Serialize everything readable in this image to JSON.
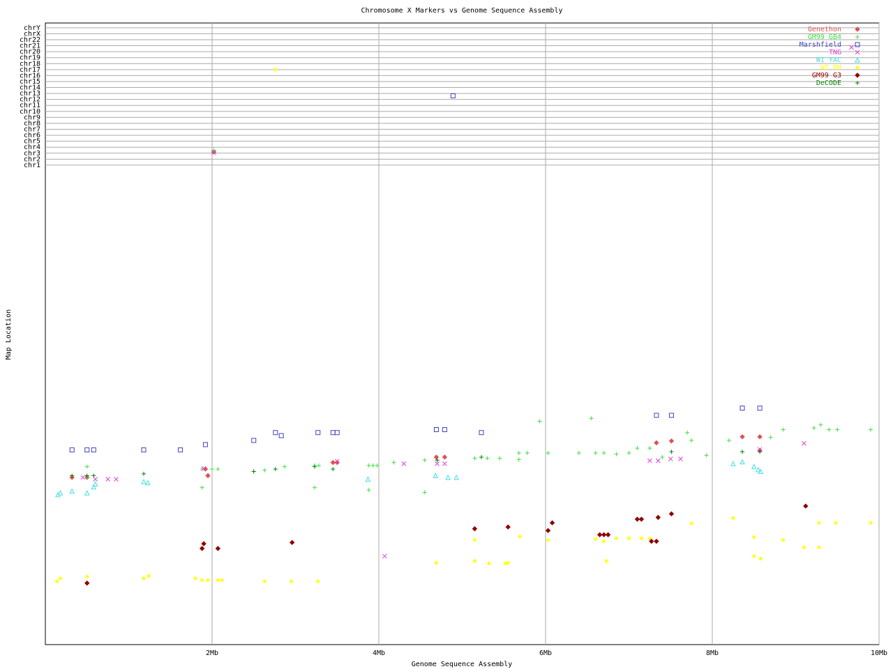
{
  "chart_data": {
    "type": "scatter",
    "title": "Chromosome X Markers vs Genome Sequence Assembly",
    "x_label": "Genome Sequence Assembly",
    "y_label": "Map Location",
    "xlim": [
      0,
      10
    ],
    "ylim": [
      -79.3,
      24.8
    ],
    "xticks": [
      {
        "value": 2,
        "label": "2Mb"
      },
      {
        "value": 4,
        "label": "4Mb"
      },
      {
        "value": 6,
        "label": "6Mb"
      },
      {
        "value": 8,
        "label": "8Mb"
      },
      {
        "value": 10,
        "label": "10Mb"
      }
    ],
    "yticks": [
      {
        "value": 1,
        "label": "chr1"
      },
      {
        "value": 2,
        "label": "chr2"
      },
      {
        "value": 3,
        "label": "chr3"
      },
      {
        "value": 4,
        "label": "chr4"
      },
      {
        "value": 5,
        "label": "chr5"
      },
      {
        "value": 6,
        "label": "chr6"
      },
      {
        "value": 7,
        "label": "chr7"
      },
      {
        "value": 8,
        "label": "chr8"
      },
      {
        "value": 9,
        "label": "chr9"
      },
      {
        "value": 10,
        "label": "chr10"
      },
      {
        "value": 11,
        "label": "chr11"
      },
      {
        "value": 12,
        "label": "chr12"
      },
      {
        "value": 13,
        "label": "chr13"
      },
      {
        "value": 14,
        "label": "chr14"
      },
      {
        "value": 15,
        "label": "chr15"
      },
      {
        "value": 16,
        "label": "chr16"
      },
      {
        "value": 17,
        "label": "chr17"
      },
      {
        "value": 18,
        "label": "chr18"
      },
      {
        "value": 19,
        "label": "chr19"
      },
      {
        "value": 20,
        "label": "chr20"
      },
      {
        "value": 21,
        "label": "chr21"
      },
      {
        "value": 22,
        "label": "chr22"
      },
      {
        "value": 23,
        "label": "chrX"
      },
      {
        "value": 24,
        "label": "chrY"
      }
    ],
    "grid": true,
    "legend": "top-right",
    "series": [
      {
        "name": "Genethon",
        "color": "#e05050",
        "marker": "diamond",
        "x": [
          0.32,
          0.5,
          1.92,
          1.95,
          2.02,
          3.45,
          3.5,
          4.69,
          4.79,
          7.33,
          7.51,
          8.36,
          8.57,
          8.57
        ],
        "values": [
          -51.3,
          -51.3,
          -49.9,
          -51.0,
          3.2,
          -48.8,
          -48.8,
          -47.9,
          -47.9,
          -45.5,
          -45.2,
          -44.5,
          -44.5,
          -46.8
        ]
      },
      {
        "name": "GM99 GB4",
        "color": "#40e040",
        "marker": "plus",
        "x": [
          0.5,
          0.5,
          1.88,
          1.88,
          2.0,
          2.07,
          2.02,
          2.5,
          2.63,
          2.87,
          3.23,
          3.28,
          3.23,
          3.88,
          3.93,
          3.98,
          3.88,
          4.18,
          4.55,
          4.55,
          4.7,
          5.15,
          5.3,
          5.45,
          5.68,
          5.68,
          5.78,
          5.93,
          6.03,
          6.4,
          6.55,
          6.6,
          6.7,
          6.85,
          7.0,
          7.1,
          7.25,
          7.4,
          7.7,
          7.75,
          7.93,
          8.2,
          8.7,
          8.85,
          9.22,
          9.3,
          9.4,
          9.5,
          9.9
        ],
        "values": [
          -49.5,
          -51.3,
          -49.9,
          -53.0,
          -49.9,
          -49.9,
          3.5,
          -50.3,
          -50.1,
          -49.5,
          -49.3,
          -49.3,
          -53.0,
          -49.3,
          -49.3,
          -49.3,
          -53.4,
          -48.8,
          -48.4,
          -53.8,
          -48.4,
          -48.1,
          -48.1,
          -48.1,
          -47.2,
          -48.3,
          -47.2,
          -41.9,
          -47.2,
          -47.2,
          -41.4,
          -47.2,
          -47.2,
          -47.4,
          -47.2,
          -46.4,
          -46.4,
          -47.9,
          -43.8,
          -45.1,
          -47.6,
          -45.1,
          -44.6,
          -43.3,
          -43.0,
          -42.5,
          -43.3,
          -43.3,
          -43.3
        ]
      },
      {
        "name": "Marshfield",
        "color": "#4040c0",
        "marker": "square",
        "x": [
          0.32,
          0.5,
          0.58,
          1.18,
          1.62,
          1.92,
          2.5,
          2.76,
          2.83,
          3.27,
          3.45,
          3.5,
          4.69,
          4.79,
          4.89,
          5.23,
          7.33,
          7.51,
          8.36,
          8.57
        ],
        "values": [
          -46.7,
          -46.7,
          -46.7,
          -46.7,
          -46.7,
          -45.8,
          -45.1,
          -43.8,
          -44.3,
          -43.8,
          -43.8,
          -43.8,
          -43.3,
          -43.3,
          12.6,
          -43.8,
          -40.9,
          -40.9,
          -39.7,
          -39.7
        ]
      },
      {
        "name": "TNG",
        "color": "#e040e0",
        "marker": "x",
        "x": [
          0.45,
          0.6,
          0.75,
          0.85,
          1.9,
          2.02,
          3.5,
          4.07,
          4.3,
          4.7,
          4.79,
          7.25,
          7.35,
          7.5,
          7.62,
          8.57,
          9.1,
          9.67
        ],
        "values": [
          -51.3,
          -51.6,
          -51.6,
          -51.6,
          -49.8,
          3.1,
          -48.6,
          -64.5,
          -49.0,
          -49.0,
          -49.0,
          -48.5,
          -48.5,
          -48.2,
          -48.2,
          -46.6,
          -45.6,
          20.7
        ]
      },
      {
        "name": "WI YAC",
        "color": "#40e0e0",
        "marker": "triangle",
        "x": [
          0.15,
          0.18,
          0.32,
          0.5,
          0.58,
          0.6,
          1.18,
          1.23,
          3.87,
          4.68,
          4.83,
          4.93,
          8.25,
          8.36,
          8.5,
          8.55,
          8.58
        ],
        "values": [
          -54.2,
          -53.9,
          -53.6,
          -53.9,
          -52.9,
          -52.4,
          -52.0,
          -52.2,
          -51.6,
          -51.0,
          -51.3,
          -51.3,
          -49.0,
          -48.7,
          -49.5,
          -50.0,
          -50.3
        ]
      },
      {
        "name": "WI RH",
        "color": "#ffff00",
        "marker": "star",
        "x": [
          0.14,
          0.18,
          0.5,
          1.18,
          1.24,
          1.8,
          1.88,
          1.95,
          2.07,
          2.12,
          2.76,
          2.63,
          2.95,
          3.27,
          4.69,
          5.15,
          5.15,
          5.32,
          5.52,
          5.55,
          5.69,
          6.03,
          6.6,
          6.7,
          6.73,
          6.85,
          7.0,
          7.15,
          7.25,
          7.75,
          8.25,
          8.5,
          8.5,
          8.58,
          8.85,
          9.1,
          9.28,
          9.28,
          9.48,
          9.9
        ],
        "values": [
          -68.7,
          -68.2,
          -67.9,
          -68.2,
          -67.8,
          -68.2,
          -68.5,
          -68.5,
          -68.5,
          -68.5,
          17.0,
          -68.7,
          -68.7,
          -68.7,
          -65.6,
          -61.8,
          -65.3,
          -65.7,
          -65.7,
          -65.6,
          -61.2,
          -61.8,
          -61.6,
          -62.0,
          -65.3,
          -61.5,
          -61.5,
          -61.5,
          -61.5,
          -59.0,
          -58.1,
          -61.3,
          -64.5,
          -64.9,
          -61.8,
          -63.0,
          -58.9,
          -63.0,
          -58.9,
          -58.9
        ]
      },
      {
        "name": "GM99 G3",
        "color": "#900000",
        "marker": "diamond",
        "x": [
          0.5,
          1.88,
          1.9,
          2.07,
          2.96,
          5.15,
          5.55,
          6.03,
          6.08,
          6.65,
          6.7,
          6.75,
          7.1,
          7.15,
          7.27,
          7.33,
          7.35,
          7.51,
          9.12
        ],
        "values": [
          -69.0,
          -63.2,
          -62.4,
          -63.2,
          -62.2,
          -59.9,
          -59.6,
          -60.2,
          -58.9,
          -60.9,
          -60.9,
          -60.9,
          -58.3,
          -58.3,
          -62.0,
          -62.0,
          -58.0,
          -57.4,
          -56.1
        ]
      },
      {
        "name": "DeCODE",
        "color": "#008000",
        "marker": "plus",
        "x": [
          0.32,
          0.5,
          0.58,
          1.18,
          2.5,
          2.76,
          3.23,
          3.45,
          4.7,
          5.23,
          7.51,
          8.36,
          8.57
        ],
        "values": [
          -51.0,
          -51.0,
          -51.0,
          -50.7,
          -50.3,
          -49.9,
          -49.5,
          -49.9,
          -48.4,
          -47.9,
          -47.0,
          -47.0,
          -47.0
        ]
      }
    ]
  }
}
